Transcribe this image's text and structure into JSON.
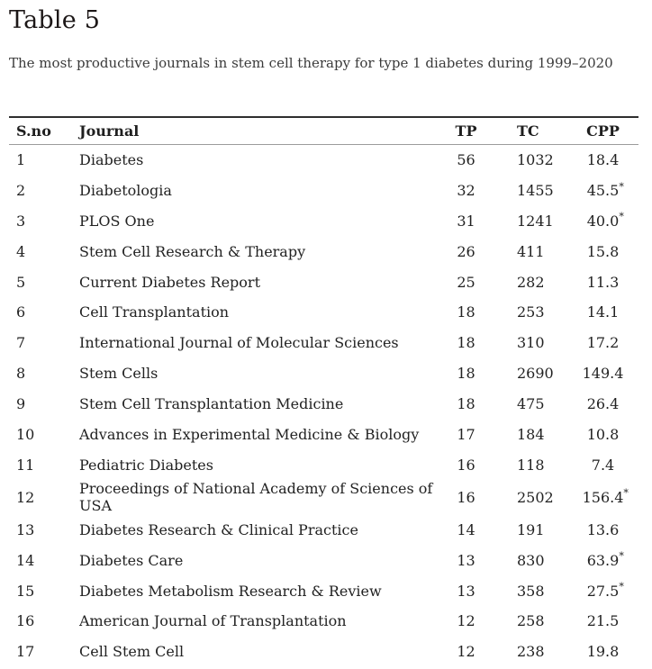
{
  "page": {
    "title": "Table 5",
    "caption": "The most productive journals in stem cell therapy for type 1 diabetes during 1999–2020"
  },
  "colors": {
    "title_text": "#1c1717",
    "body_text": "#222222",
    "caption_text": "#3a3a3a",
    "table_top_rule": "#2f2f2f",
    "header_rule": "#9b9b9b",
    "background": "#ffffff"
  },
  "table": {
    "columns": [
      "S.no",
      "Journal",
      "TP",
      "TC",
      "CPP"
    ],
    "star_symbol": "*",
    "rows": [
      {
        "sno": "1",
        "journal": "Diabetes",
        "tp": "56",
        "tc": "1032",
        "cpp": "18.4",
        "star": false
      },
      {
        "sno": "2",
        "journal": "Diabetologia",
        "tp": "32",
        "tc": "1455",
        "cpp": "45.5",
        "star": true
      },
      {
        "sno": "3",
        "journal": "PLOS One",
        "tp": "31",
        "tc": "1241",
        "cpp": "40.0",
        "star": true
      },
      {
        "sno": "4",
        "journal": "Stem Cell Research & Therapy",
        "tp": "26",
        "tc": "411",
        "cpp": "15.8",
        "star": false
      },
      {
        "sno": "5",
        "journal": "Current Diabetes Report",
        "tp": "25",
        "tc": "282",
        "cpp": "11.3",
        "star": false
      },
      {
        "sno": "6",
        "journal": "Cell Transplantation",
        "tp": "18",
        "tc": "253",
        "cpp": "14.1",
        "star": false
      },
      {
        "sno": "7",
        "journal": "International Journal of Molecular Sciences",
        "tp": "18",
        "tc": "310",
        "cpp": "17.2",
        "star": false
      },
      {
        "sno": "8",
        "journal": "Stem Cells",
        "tp": "18",
        "tc": "2690",
        "cpp": "149.4",
        "star": false
      },
      {
        "sno": "9",
        "journal": "Stem Cell Transplantation Medicine",
        "tp": "18",
        "tc": "475",
        "cpp": "26.4",
        "star": false
      },
      {
        "sno": "10",
        "journal": "Advances in Experimental Medicine & Biology",
        "tp": "17",
        "tc": "184",
        "cpp": "10.8",
        "star": false
      },
      {
        "sno": "11",
        "journal": "Pediatric Diabetes",
        "tp": "16",
        "tc": "118",
        "cpp": "7.4",
        "star": false
      },
      {
        "sno": "12",
        "journal": "Proceedings of National Academy of Sciences of USA",
        "tp": "16",
        "tc": "2502",
        "cpp": "156.4",
        "star": true
      },
      {
        "sno": "13",
        "journal": "Diabetes Research & Clinical Practice",
        "tp": "14",
        "tc": "191",
        "cpp": "13.6",
        "star": false
      },
      {
        "sno": "14",
        "journal": "Diabetes Care",
        "tp": "13",
        "tc": "830",
        "cpp": "63.9",
        "star": true
      },
      {
        "sno": "15",
        "journal": "Diabetes Metabolism Research & Review",
        "tp": "13",
        "tc": "358",
        "cpp": "27.5",
        "star": true
      },
      {
        "sno": "16",
        "journal": "American Journal of Transplantation",
        "tp": "12",
        "tc": "258",
        "cpp": "21.5",
        "star": false
      },
      {
        "sno": "17",
        "journal": "Cell Stem Cell",
        "tp": "12",
        "tc": "238",
        "cpp": "19.8",
        "star": false
      }
    ]
  }
}
